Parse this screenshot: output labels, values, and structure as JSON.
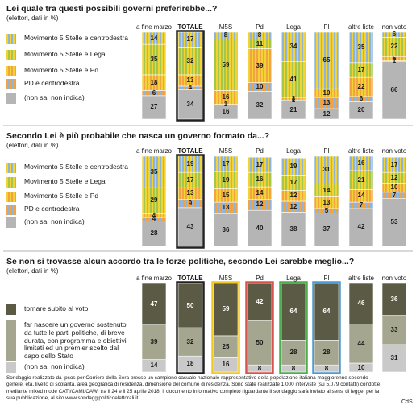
{
  "chart_data": [
    {
      "type": "bar",
      "stacked": true,
      "title": "Lei quale tra questi possibili governi preferirebbe...?",
      "subtitle": "(elettori, dati in %)",
      "categories": [
        "a fine marzo",
        "TOTALE",
        "M5S",
        "Pd",
        "Lega",
        "FI",
        "altre liste",
        "non voto"
      ],
      "border_colors": [
        null,
        "#222222",
        null,
        null,
        null,
        null,
        null,
        null
      ],
      "ylim": [
        0,
        100
      ],
      "series": [
        {
          "name": "Movimento 5 Stelle e centrodestra",
          "color": "#f2d333",
          "stripe": "#8fb4dc",
          "values": [
            14,
            17,
            8,
            8,
            34,
            65,
            35,
            6
          ]
        },
        {
          "name": "Movimento 5 Stelle e Lega",
          "color": "#f2d333",
          "stripe": "#a4c64a",
          "values": [
            35,
            32,
            59,
            11,
            41,
            null,
            17,
            22
          ]
        },
        {
          "name": "Movimento 5 Stelle e Pd",
          "color": "#f2d333",
          "stripe": "#f2a444",
          "values": [
            18,
            13,
            16,
            39,
            3,
            10,
            22,
            5
          ]
        },
        {
          "name": "PD e centrodestra",
          "color": "#f2a444",
          "stripe": "#8fb4dc",
          "values": [
            6,
            4,
            1,
            10,
            1,
            13,
            6,
            1
          ]
        },
        {
          "name": "(non sa, non indica)",
          "color": "#b5b5b5",
          "values": [
            27,
            34,
            16,
            32,
            21,
            12,
            20,
            66
          ]
        }
      ]
    },
    {
      "type": "bar",
      "stacked": true,
      "title": "Secondo Lei è più probabile che nasca un governo formato da...?",
      "subtitle": "(elettori, dati in %)",
      "categories": [
        "a fine marzo",
        "TOTALE",
        "M5S",
        "Pd",
        "Lega",
        "FI",
        "altre liste",
        "non voto"
      ],
      "border_colors": [
        null,
        "#222222",
        null,
        null,
        null,
        null,
        null,
        null
      ],
      "ylim": [
        0,
        100
      ],
      "series": [
        {
          "name": "Movimento 5 Stelle e centrodestra",
          "color": "#f2d333",
          "stripe": "#8fb4dc",
          "values": [
            35,
            19,
            17,
            17,
            19,
            31,
            16,
            17
          ]
        },
        {
          "name": "Movimento 5 Stelle e Lega",
          "color": "#f2d333",
          "stripe": "#a4c64a",
          "values": [
            29,
            17,
            19,
            16,
            17,
            14,
            21,
            12
          ]
        },
        {
          "name": "Movimento 5 Stelle e Pd",
          "color": "#f2d333",
          "stripe": "#f2a444",
          "values": [
            4,
            13,
            15,
            14,
            12,
            13,
            14,
            10
          ]
        },
        {
          "name": "PD e centrodestra",
          "color": "#f2a444",
          "stripe": "#8fb4dc",
          "values": [
            4,
            9,
            13,
            12,
            12,
            5,
            7,
            7
          ]
        },
        {
          "name": "(non sa, non indica)",
          "color": "#b5b5b5",
          "values": [
            28,
            43,
            36,
            40,
            38,
            37,
            42,
            53
          ]
        }
      ]
    },
    {
      "type": "bar",
      "stacked": true,
      "title": "Se non si trovasse alcun accordo tra le forze politiche, secondo Lei sarebbe meglio...?",
      "subtitle": "(elettori, dati in %)",
      "categories": [
        "a fine marzo",
        "TOTALE",
        "M5S",
        "Pd",
        "Lega",
        "FI",
        "altre liste",
        "non voto"
      ],
      "border_colors": [
        null,
        "#222222",
        "#f2c81e",
        "#d9534f",
        "#4cae4c",
        "#4a9ad4",
        null,
        null
      ],
      "ylim": [
        0,
        100
      ],
      "series": [
        {
          "name": "tornare subito al voto",
          "color": "#5b5b45",
          "values": [
            47,
            50,
            59,
            42,
            64,
            64,
            46,
            36
          ]
        },
        {
          "name": "far nascere un governo sostenuto da tutte le parti politiche, di breve durata, con programma e obiettivi limitati ed un premier scelto dal capo dello Stato",
          "color": "#a5a68f",
          "values": [
            39,
            32,
            25,
            50,
            28,
            28,
            44,
            33
          ]
        },
        {
          "name": "(non sa, non indica)",
          "color": "#c9c9c9",
          "values": [
            14,
            18,
            16,
            8,
            8,
            8,
            10,
            31
          ]
        }
      ]
    }
  ],
  "footer": {
    "note": "Sondaggio realizzato da Ipsos per Corriere della Sera presso un campione casuale nazionale rappresentativo della popolazione italiana maggiorenne secondo genere, età, livello di scolarità, area geografica di residenza, dimensione del comune di residenza. Sono state realizzate 1.000 interviste (su 5.079 contatti) condotte mediante mixed mode CATI/CAMI/CAWI tra il 24 e il 25 aprile 2018. Il documento informativo completo riguardante il sondaggio sarà inviato ai sensi di legge, per la sua pubblicazione, al sito www.sondaggipoliticoelettorali.it",
    "credit": "CdS"
  }
}
